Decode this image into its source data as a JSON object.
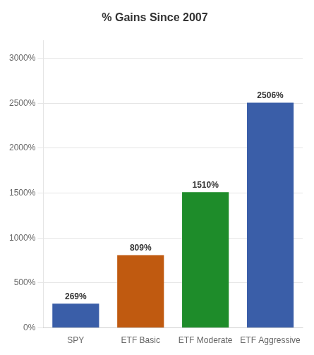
{
  "chart_data": {
    "type": "bar",
    "title": "% Gains Since 2007",
    "categories": [
      "SPY",
      "ETF Basic",
      "ETF Moderate",
      "ETF Aggressive"
    ],
    "values": [
      269,
      809,
      1510,
      2506
    ],
    "value_labels": [
      "269%",
      "809%",
      "1510%",
      "2506%"
    ],
    "colors": [
      "#3a5ea8",
      "#c05a10",
      "#1e8c2a",
      "#3a5ea8"
    ],
    "ylim": [
      0,
      3200
    ],
    "yticks": [
      {
        "value": 0,
        "label": "0%"
      },
      {
        "value": 500,
        "label": "500%"
      },
      {
        "value": 1000,
        "label": "1000%"
      },
      {
        "value": 1500,
        "label": "1500%"
      },
      {
        "value": 2000,
        "label": "2000%"
      },
      {
        "value": 2500,
        "label": "2500%"
      },
      {
        "value": 3000,
        "label": "3000%"
      }
    ],
    "grid": "y",
    "data_labels": true
  }
}
